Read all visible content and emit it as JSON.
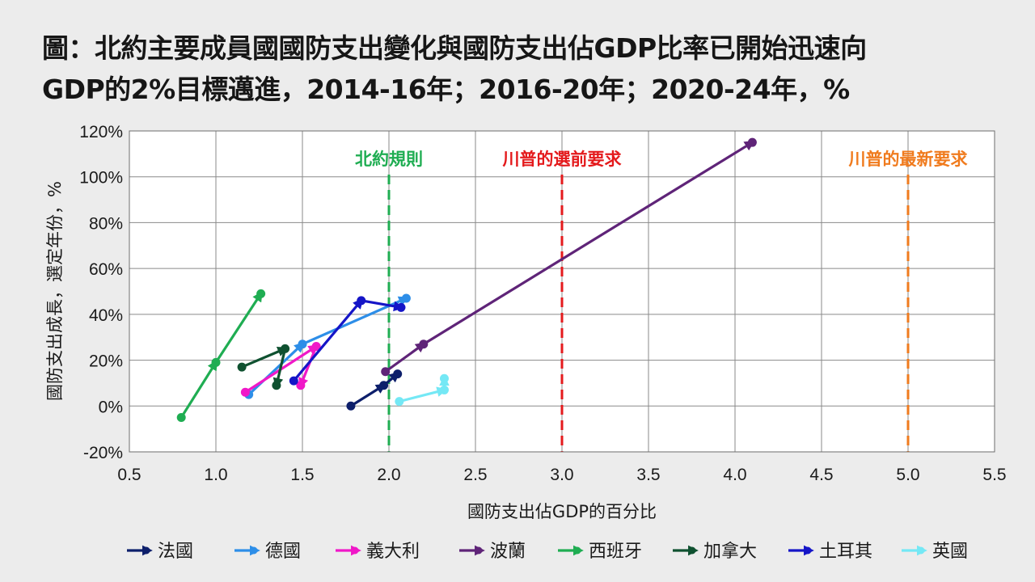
{
  "title": {
    "line1": "圖：北約主要成員國國防支出變化與國防支出佔GDP比率已開始迅速向",
    "line2": "GDP的2%目標邁進，2014-16年；2016-20年；2020-24年，%"
  },
  "chart_data": {
    "type": "scatter",
    "xlabel": "國防支出佔GDP的百分比",
    "ylabel": "國防支出成長，選定年份，%",
    "xlim": [
      0.5,
      5.5
    ],
    "ylim": [
      -20,
      120
    ],
    "x_ticks": [
      "0.5",
      "1.0",
      "1.5",
      "2.0",
      "2.5",
      "3.0",
      "3.5",
      "4.0",
      "4.5",
      "5.0",
      "5.5"
    ],
    "y_ticks": [
      "-20%",
      "0%",
      "20%",
      "40%",
      "60%",
      "80%",
      "100%",
      "120%"
    ],
    "grid": true,
    "legend_position": "bottom",
    "reference_lines": [
      {
        "label": "北約規則",
        "x": 2.0,
        "color": "#1fad52"
      },
      {
        "label": "川普的選前要求",
        "x": 3.0,
        "color": "#e41a1c"
      },
      {
        "label": "川普的最新要求",
        "x": 5.0,
        "color": "#f07b1e"
      }
    ],
    "series": [
      {
        "name": "法國",
        "color": "#0d1f6b",
        "points": [
          [
            1.78,
            0
          ],
          [
            1.97,
            9
          ],
          [
            2.05,
            14
          ]
        ]
      },
      {
        "name": "德國",
        "color": "#2d8ee8",
        "points": [
          [
            1.19,
            5
          ],
          [
            1.5,
            27
          ],
          [
            2.1,
            47
          ]
        ]
      },
      {
        "name": "義大利",
        "color": "#f018c8",
        "points": [
          [
            1.17,
            6
          ],
          [
            1.58,
            26
          ],
          [
            1.49,
            9
          ]
        ]
      },
      {
        "name": "波蘭",
        "color": "#5f2478",
        "points": [
          [
            1.98,
            15
          ],
          [
            2.2,
            27
          ],
          [
            4.1,
            115
          ]
        ]
      },
      {
        "name": "西班牙",
        "color": "#1fad52",
        "points": [
          [
            0.8,
            -5
          ],
          [
            1.0,
            19
          ],
          [
            1.26,
            49
          ]
        ]
      },
      {
        "name": "加拿大",
        "color": "#0f5130",
        "points": [
          [
            1.15,
            17
          ],
          [
            1.4,
            25
          ],
          [
            1.35,
            9
          ]
        ]
      },
      {
        "name": "土耳其",
        "color": "#1515c7",
        "points": [
          [
            1.45,
            11
          ],
          [
            1.84,
            46
          ],
          [
            2.07,
            43
          ]
        ]
      },
      {
        "name": "英國",
        "color": "#74e8f5",
        "points": [
          [
            2.06,
            2
          ],
          [
            2.32,
            7
          ],
          [
            2.32,
            12
          ]
        ]
      }
    ]
  }
}
